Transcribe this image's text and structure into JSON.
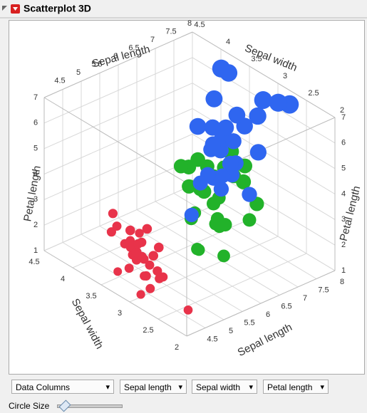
{
  "header": {
    "title": "Scatterplot 3D"
  },
  "chart_data": {
    "type": "scatter3d",
    "x_label": "Sepal length",
    "y_label": "Sepal width",
    "z_label": "Petal length",
    "xlim": [
      4,
      8
    ],
    "xticks": [
      4.5,
      5,
      5.5,
      6,
      6.5,
      7,
      7.5,
      8
    ],
    "ylim": [
      2,
      4.5
    ],
    "yticks": [
      2,
      2.5,
      3,
      3.5,
      4,
      4.5
    ],
    "zlim": [
      1,
      7
    ],
    "zticks": [
      1,
      2,
      3,
      4,
      5,
      6,
      7
    ],
    "grid": true,
    "series": [
      {
        "color": "#e8334a",
        "x": [
          5.1,
          4.9,
          4.7,
          4.6,
          5.0,
          5.4,
          4.6,
          5.0,
          4.4,
          4.9,
          5.4,
          4.8,
          4.8,
          4.3,
          5.8,
          5.7,
          5.4,
          5.1,
          5.7,
          5.1,
          5.4,
          5.1,
          4.6,
          5.1,
          4.8,
          4.5,
          5.2,
          5.5,
          5.0,
          5.3
        ],
        "y": [
          3.5,
          3.0,
          3.2,
          3.1,
          3.6,
          3.9,
          3.4,
          3.4,
          2.9,
          3.1,
          3.7,
          3.4,
          3.0,
          3.0,
          4.0,
          4.4,
          3.9,
          3.5,
          3.8,
          3.8,
          3.4,
          3.7,
          3.6,
          3.3,
          3.4,
          2.3,
          4.1,
          4.2,
          3.3,
          3.7
        ],
        "z": [
          1.4,
          1.4,
          1.3,
          1.5,
          1.4,
          1.7,
          1.4,
          1.5,
          1.4,
          1.5,
          1.5,
          1.6,
          1.4,
          1.1,
          1.2,
          1.5,
          1.3,
          1.4,
          1.7,
          1.5,
          1.7,
          1.5,
          1.0,
          1.7,
          1.9,
          1.3,
          1.5,
          1.4,
          1.4,
          1.5
        ]
      },
      {
        "color": "#22b22a",
        "x": [
          7.0,
          6.4,
          6.9,
          5.5,
          6.5,
          5.7,
          6.3,
          4.9,
          6.6,
          5.2,
          5.0,
          5.9,
          6.0,
          6.1,
          5.6,
          6.7,
          5.6,
          5.8,
          6.2,
          5.6,
          5.9,
          6.1,
          6.3,
          6.8,
          5.7,
          5.5,
          6.0,
          5.1
        ],
        "y": [
          3.2,
          3.2,
          3.1,
          2.3,
          2.8,
          2.8,
          3.3,
          2.4,
          2.9,
          2.7,
          2.0,
          3.0,
          2.2,
          2.9,
          2.9,
          3.1,
          3.0,
          2.7,
          2.2,
          2.5,
          3.2,
          2.8,
          2.5,
          2.8,
          2.6,
          2.4,
          3.4,
          2.5
        ],
        "z": [
          4.7,
          4.5,
          4.9,
          4.0,
          4.6,
          4.5,
          4.7,
          3.3,
          4.6,
          3.9,
          3.5,
          4.2,
          4.0,
          4.7,
          3.6,
          4.4,
          4.5,
          4.1,
          4.5,
          3.9,
          4.8,
          4.0,
          4.9,
          4.8,
          3.5,
          3.8,
          4.5,
          3.0
        ]
      },
      {
        "color": "#2f66f0",
        "x": [
          6.3,
          5.8,
          7.1,
          6.3,
          6.5,
          7.6,
          4.9,
          7.3,
          6.7,
          7.2,
          6.5,
          6.4,
          6.8,
          5.7,
          5.8,
          7.7,
          7.7,
          6.0,
          6.9,
          5.6,
          7.7,
          6.3,
          6.7,
          7.2,
          6.2,
          7.9,
          6.1,
          6.4
        ],
        "y": [
          3.3,
          2.7,
          3.0,
          2.9,
          3.0,
          3.0,
          2.5,
          2.9,
          2.5,
          3.6,
          3.2,
          2.7,
          3.0,
          2.5,
          2.8,
          3.8,
          2.6,
          2.2,
          3.2,
          2.8,
          2.8,
          2.7,
          3.3,
          3.2,
          2.8,
          3.8,
          2.6,
          3.1
        ],
        "z": [
          6.0,
          5.1,
          5.9,
          5.6,
          5.8,
          6.6,
          4.5,
          6.3,
          5.8,
          6.1,
          5.1,
          5.3,
          5.5,
          5.0,
          5.1,
          6.7,
          6.9,
          5.0,
          5.7,
          4.9,
          6.7,
          4.9,
          5.7,
          6.0,
          4.8,
          6.4,
          5.6,
          5.5
        ]
      }
    ]
  },
  "controls": {
    "columns": "Data Columns",
    "x": "Sepal length",
    "y": "Sepal width",
    "z": "Petal length",
    "circle_size": "Circle Size"
  }
}
